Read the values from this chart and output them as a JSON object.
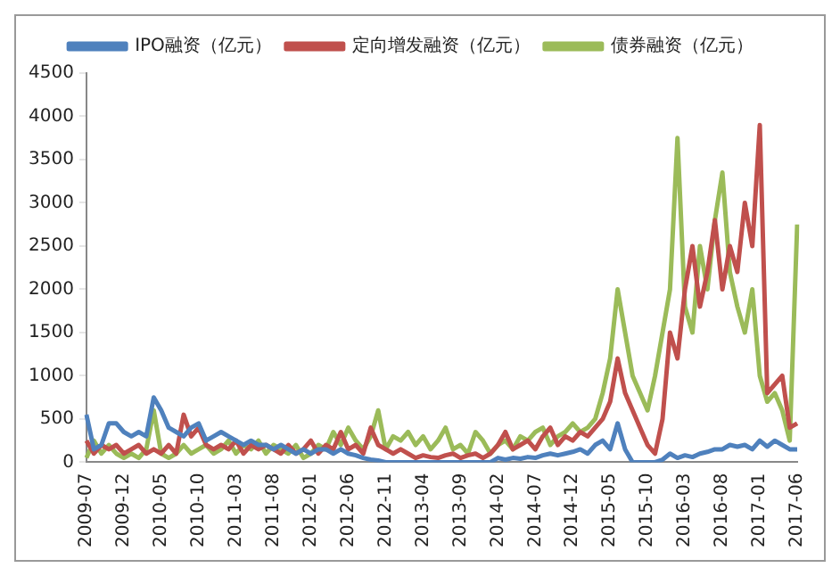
{
  "chart_data": {
    "type": "line",
    "categories": [
      "2009-07",
      null,
      null,
      null,
      null,
      "2009-12",
      null,
      null,
      null,
      null,
      "2010-05",
      null,
      null,
      null,
      null,
      "2010-10",
      null,
      null,
      null,
      null,
      "2011-03",
      null,
      null,
      null,
      null,
      "2011-08",
      null,
      null,
      null,
      null,
      "2012-01",
      null,
      null,
      null,
      null,
      "2012-06",
      null,
      null,
      null,
      null,
      "2012-11",
      null,
      null,
      null,
      null,
      "2013-04",
      null,
      null,
      null,
      null,
      "2013-09",
      null,
      null,
      null,
      null,
      "2014-02",
      null,
      null,
      null,
      null,
      "2014-07",
      null,
      null,
      null,
      null,
      "2014-12",
      null,
      null,
      null,
      null,
      "2015-05",
      null,
      null,
      null,
      null,
      "2015-10",
      null,
      null,
      null,
      null,
      "2016-03",
      null,
      null,
      null,
      null,
      "2016-08",
      null,
      null,
      null,
      null,
      "2017-01",
      null,
      null,
      null,
      null,
      "2017-06"
    ],
    "series": [
      {
        "name": "IPO融资（亿元）",
        "color": "#4f81bd",
        "values": [
          550,
          150,
          200,
          450,
          450,
          350,
          300,
          350,
          300,
          750,
          600,
          400,
          350,
          300,
          400,
          450,
          250,
          300,
          350,
          300,
          250,
          200,
          250,
          200,
          200,
          150,
          200,
          150,
          100,
          150,
          100,
          150,
          150,
          100,
          150,
          100,
          80,
          50,
          30,
          20,
          0,
          0,
          0,
          0,
          0,
          0,
          0,
          0,
          0,
          0,
          0,
          0,
          0,
          0,
          0,
          50,
          30,
          50,
          40,
          60,
          50,
          80,
          100,
          80,
          100,
          120,
          150,
          100,
          200,
          250,
          150,
          450,
          150,
          0,
          0,
          0,
          0,
          30,
          100,
          50,
          80,
          60,
          100,
          120,
          150,
          150,
          200,
          180,
          200,
          150,
          250,
          180,
          250,
          200,
          150,
          150
        ]
      },
      {
        "name": "定向增发融资（亿元）",
        "color": "#c0504d",
        "values": [
          250,
          100,
          200,
          150,
          200,
          100,
          150,
          200,
          100,
          150,
          100,
          200,
          100,
          550,
          300,
          400,
          200,
          150,
          200,
          150,
          250,
          100,
          200,
          150,
          200,
          150,
          100,
          200,
          100,
          150,
          250,
          100,
          200,
          150,
          350,
          150,
          200,
          100,
          400,
          200,
          150,
          100,
          150,
          100,
          50,
          80,
          60,
          50,
          80,
          100,
          50,
          80,
          100,
          50,
          100,
          200,
          350,
          150,
          200,
          250,
          150,
          300,
          400,
          200,
          300,
          250,
          350,
          300,
          400,
          500,
          700,
          1200,
          800,
          600,
          400,
          200,
          100,
          500,
          1500,
          1200,
          2000,
          2500,
          1800,
          2200,
          2800,
          2000,
          2500,
          2200,
          3000,
          2500,
          3900,
          800,
          900,
          1000,
          400,
          450
        ]
      },
      {
        "name": "债券融资（亿元）",
        "color": "#9bbb59",
        "values": [
          50,
          250,
          100,
          200,
          100,
          50,
          100,
          50,
          150,
          600,
          100,
          50,
          100,
          200,
          100,
          150,
          200,
          100,
          150,
          250,
          100,
          200,
          150,
          250,
          100,
          200,
          150,
          100,
          200,
          50,
          100,
          200,
          150,
          350,
          200,
          400,
          250,
          150,
          300,
          600,
          150,
          300,
          250,
          350,
          200,
          300,
          150,
          250,
          400,
          150,
          200,
          100,
          350,
          250,
          100,
          200,
          250,
          150,
          300,
          250,
          350,
          400,
          200,
          300,
          350,
          450,
          350,
          400,
          500,
          800,
          1200,
          2000,
          1500,
          1000,
          800,
          600,
          1000,
          1500,
          2000,
          3750,
          1800,
          1500,
          2500,
          2000,
          2800,
          3350,
          2200,
          1800,
          1500,
          2000,
          1000,
          700,
          800,
          600,
          250,
          2750
        ]
      }
    ],
    "ylim": [
      0,
      4500
    ],
    "yticks": [
      0,
      500,
      1000,
      1500,
      2000,
      2500,
      3000,
      3500,
      4000,
      4500
    ],
    "grid": false,
    "legend": "top",
    "marker": "none",
    "line_style": "solid"
  }
}
